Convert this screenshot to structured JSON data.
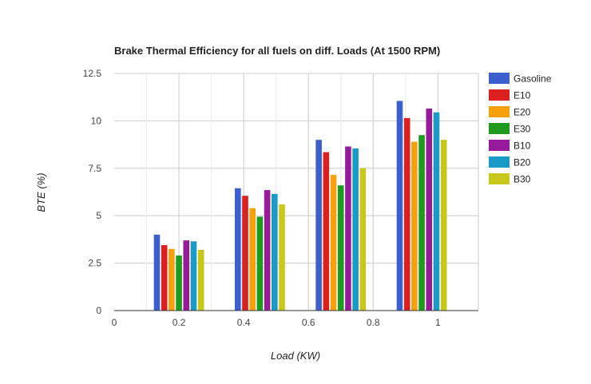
{
  "chart_data": {
    "type": "bar",
    "title": "Brake Thermal Efficiency for all fuels on diff. Loads (At 1500 RPM)",
    "xlabel": "Load (KW)",
    "ylabel": "BTE (%)",
    "x": [
      0.2,
      0.45,
      0.7,
      0.95
    ],
    "xlim": [
      0,
      1.125
    ],
    "ylim": [
      0,
      12.5
    ],
    "x_ticks": [
      "0",
      "0.2",
      "0.4",
      "0.6",
      "0.8",
      "1"
    ],
    "y_ticks": [
      "0",
      "2.5",
      "5",
      "7.5",
      "10",
      "12.5"
    ],
    "grid": true,
    "legend_position": "right",
    "series": [
      {
        "name": "Gasoline",
        "color": "#3b5fcf",
        "values": [
          4.0,
          6.45,
          9.0,
          11.05
        ]
      },
      {
        "name": "E10",
        "color": "#dc1f1f",
        "values": [
          3.45,
          6.05,
          8.35,
          10.15
        ]
      },
      {
        "name": "E20",
        "color": "#f6a00c",
        "values": [
          3.25,
          5.4,
          7.15,
          8.9
        ]
      },
      {
        "name": "E30",
        "color": "#1f9a1f",
        "values": [
          2.9,
          4.95,
          6.6,
          9.25
        ]
      },
      {
        "name": "B10",
        "color": "#971a9a",
        "values": [
          3.7,
          6.35,
          8.65,
          10.65
        ]
      },
      {
        "name": "B20",
        "color": "#1a9ac6",
        "values": [
          3.65,
          6.15,
          8.55,
          10.45
        ]
      },
      {
        "name": "B30",
        "color": "#c7c81a",
        "values": [
          3.2,
          5.6,
          7.5,
          9.0
        ]
      }
    ]
  }
}
